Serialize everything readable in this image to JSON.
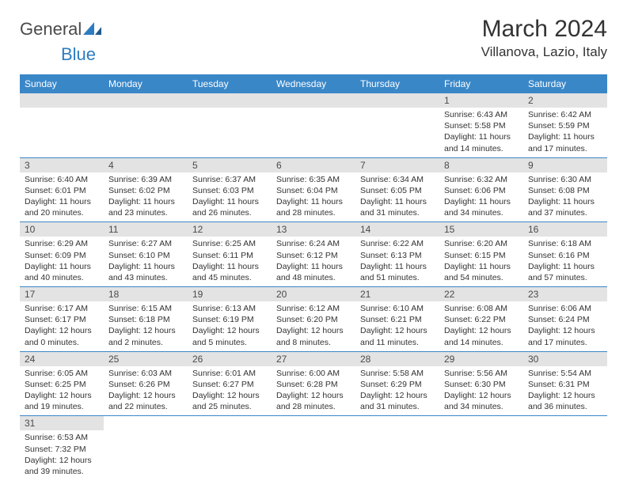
{
  "logo": {
    "text1": "General",
    "text2": "Blue"
  },
  "title": "March 2024",
  "location": "Villanova, Lazio, Italy",
  "dayHeaders": [
    "Sunday",
    "Monday",
    "Tuesday",
    "Wednesday",
    "Thursday",
    "Friday",
    "Saturday"
  ],
  "colors": {
    "headerBg": "#3a87c8",
    "dayNumBg": "#e3e3e3",
    "borderColor": "#3a87c8"
  },
  "weeks": [
    [
      {
        "num": "",
        "lines": []
      },
      {
        "num": "",
        "lines": []
      },
      {
        "num": "",
        "lines": []
      },
      {
        "num": "",
        "lines": []
      },
      {
        "num": "",
        "lines": []
      },
      {
        "num": "1",
        "lines": [
          "Sunrise: 6:43 AM",
          "Sunset: 5:58 PM",
          "Daylight: 11 hours and 14 minutes."
        ]
      },
      {
        "num": "2",
        "lines": [
          "Sunrise: 6:42 AM",
          "Sunset: 5:59 PM",
          "Daylight: 11 hours and 17 minutes."
        ]
      }
    ],
    [
      {
        "num": "3",
        "lines": [
          "Sunrise: 6:40 AM",
          "Sunset: 6:01 PM",
          "Daylight: 11 hours and 20 minutes."
        ]
      },
      {
        "num": "4",
        "lines": [
          "Sunrise: 6:39 AM",
          "Sunset: 6:02 PM",
          "Daylight: 11 hours and 23 minutes."
        ]
      },
      {
        "num": "5",
        "lines": [
          "Sunrise: 6:37 AM",
          "Sunset: 6:03 PM",
          "Daylight: 11 hours and 26 minutes."
        ]
      },
      {
        "num": "6",
        "lines": [
          "Sunrise: 6:35 AM",
          "Sunset: 6:04 PM",
          "Daylight: 11 hours and 28 minutes."
        ]
      },
      {
        "num": "7",
        "lines": [
          "Sunrise: 6:34 AM",
          "Sunset: 6:05 PM",
          "Daylight: 11 hours and 31 minutes."
        ]
      },
      {
        "num": "8",
        "lines": [
          "Sunrise: 6:32 AM",
          "Sunset: 6:06 PM",
          "Daylight: 11 hours and 34 minutes."
        ]
      },
      {
        "num": "9",
        "lines": [
          "Sunrise: 6:30 AM",
          "Sunset: 6:08 PM",
          "Daylight: 11 hours and 37 minutes."
        ]
      }
    ],
    [
      {
        "num": "10",
        "lines": [
          "Sunrise: 6:29 AM",
          "Sunset: 6:09 PM",
          "Daylight: 11 hours and 40 minutes."
        ]
      },
      {
        "num": "11",
        "lines": [
          "Sunrise: 6:27 AM",
          "Sunset: 6:10 PM",
          "Daylight: 11 hours and 43 minutes."
        ]
      },
      {
        "num": "12",
        "lines": [
          "Sunrise: 6:25 AM",
          "Sunset: 6:11 PM",
          "Daylight: 11 hours and 45 minutes."
        ]
      },
      {
        "num": "13",
        "lines": [
          "Sunrise: 6:24 AM",
          "Sunset: 6:12 PM",
          "Daylight: 11 hours and 48 minutes."
        ]
      },
      {
        "num": "14",
        "lines": [
          "Sunrise: 6:22 AM",
          "Sunset: 6:13 PM",
          "Daylight: 11 hours and 51 minutes."
        ]
      },
      {
        "num": "15",
        "lines": [
          "Sunrise: 6:20 AM",
          "Sunset: 6:15 PM",
          "Daylight: 11 hours and 54 minutes."
        ]
      },
      {
        "num": "16",
        "lines": [
          "Sunrise: 6:18 AM",
          "Sunset: 6:16 PM",
          "Daylight: 11 hours and 57 minutes."
        ]
      }
    ],
    [
      {
        "num": "17",
        "lines": [
          "Sunrise: 6:17 AM",
          "Sunset: 6:17 PM",
          "Daylight: 12 hours and 0 minutes."
        ]
      },
      {
        "num": "18",
        "lines": [
          "Sunrise: 6:15 AM",
          "Sunset: 6:18 PM",
          "Daylight: 12 hours and 2 minutes."
        ]
      },
      {
        "num": "19",
        "lines": [
          "Sunrise: 6:13 AM",
          "Sunset: 6:19 PM",
          "Daylight: 12 hours and 5 minutes."
        ]
      },
      {
        "num": "20",
        "lines": [
          "Sunrise: 6:12 AM",
          "Sunset: 6:20 PM",
          "Daylight: 12 hours and 8 minutes."
        ]
      },
      {
        "num": "21",
        "lines": [
          "Sunrise: 6:10 AM",
          "Sunset: 6:21 PM",
          "Daylight: 12 hours and 11 minutes."
        ]
      },
      {
        "num": "22",
        "lines": [
          "Sunrise: 6:08 AM",
          "Sunset: 6:22 PM",
          "Daylight: 12 hours and 14 minutes."
        ]
      },
      {
        "num": "23",
        "lines": [
          "Sunrise: 6:06 AM",
          "Sunset: 6:24 PM",
          "Daylight: 12 hours and 17 minutes."
        ]
      }
    ],
    [
      {
        "num": "24",
        "lines": [
          "Sunrise: 6:05 AM",
          "Sunset: 6:25 PM",
          "Daylight: 12 hours and 19 minutes."
        ]
      },
      {
        "num": "25",
        "lines": [
          "Sunrise: 6:03 AM",
          "Sunset: 6:26 PM",
          "Daylight: 12 hours and 22 minutes."
        ]
      },
      {
        "num": "26",
        "lines": [
          "Sunrise: 6:01 AM",
          "Sunset: 6:27 PM",
          "Daylight: 12 hours and 25 minutes."
        ]
      },
      {
        "num": "27",
        "lines": [
          "Sunrise: 6:00 AM",
          "Sunset: 6:28 PM",
          "Daylight: 12 hours and 28 minutes."
        ]
      },
      {
        "num": "28",
        "lines": [
          "Sunrise: 5:58 AM",
          "Sunset: 6:29 PM",
          "Daylight: 12 hours and 31 minutes."
        ]
      },
      {
        "num": "29",
        "lines": [
          "Sunrise: 5:56 AM",
          "Sunset: 6:30 PM",
          "Daylight: 12 hours and 34 minutes."
        ]
      },
      {
        "num": "30",
        "lines": [
          "Sunrise: 5:54 AM",
          "Sunset: 6:31 PM",
          "Daylight: 12 hours and 36 minutes."
        ]
      }
    ],
    [
      {
        "num": "31",
        "lines": [
          "Sunrise: 6:53 AM",
          "Sunset: 7:32 PM",
          "Daylight: 12 hours and 39 minutes."
        ]
      },
      {
        "num": "",
        "lines": []
      },
      {
        "num": "",
        "lines": []
      },
      {
        "num": "",
        "lines": []
      },
      {
        "num": "",
        "lines": []
      },
      {
        "num": "",
        "lines": []
      },
      {
        "num": "",
        "lines": []
      }
    ]
  ]
}
